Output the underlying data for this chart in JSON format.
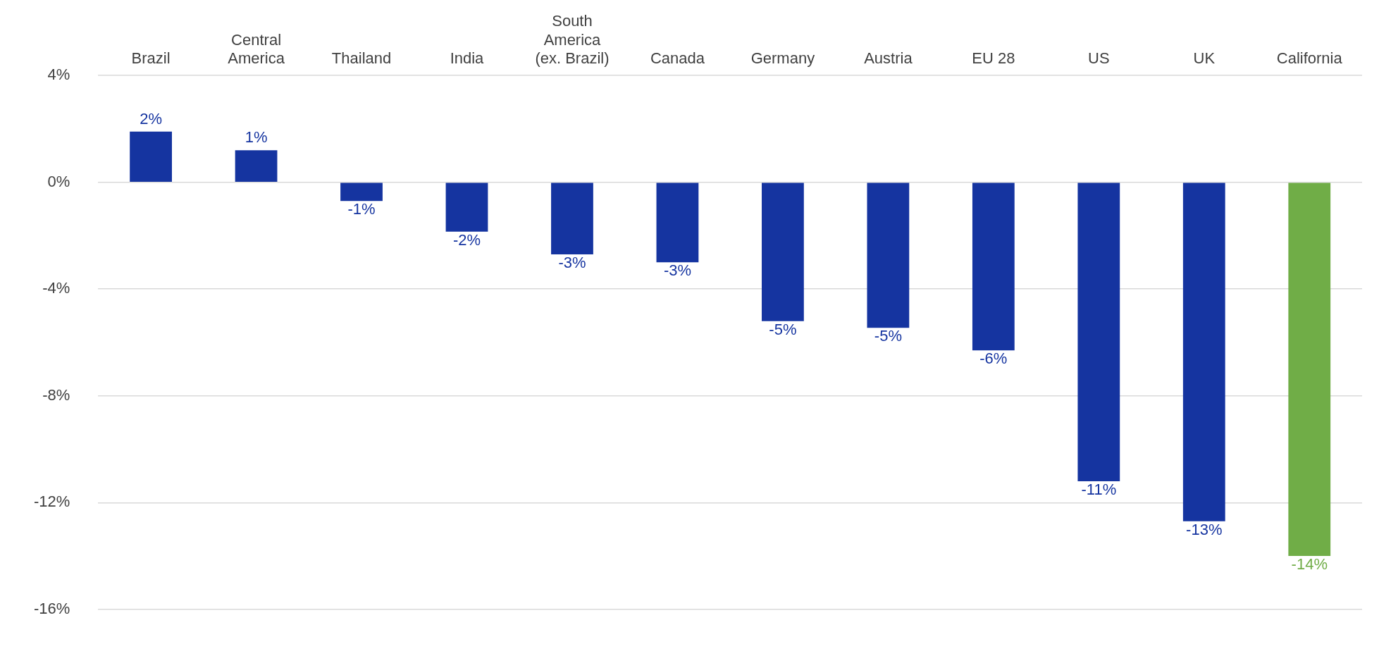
{
  "chart_data": {
    "type": "bar",
    "categories": [
      "Brazil",
      "Central\nAmerica",
      "Thailand",
      "India",
      "South\nAmerica\n(ex. Brazil)",
      "Canada",
      "Germany",
      "Austria",
      "EU 28",
      "US",
      "UK",
      "California"
    ],
    "values": [
      1.9,
      1.2,
      -0.7,
      -1.85,
      -2.7,
      -3.0,
      -5.2,
      -5.45,
      -6.3,
      -11.2,
      -12.7,
      -14.0
    ],
    "value_labels": [
      "2%",
      "1%",
      "-1%",
      "-2%",
      "-3%",
      "-3%",
      "-5%",
      "-5%",
      "-6%",
      "-11%",
      "-13%",
      "-14%"
    ],
    "colors": [
      "#1534a0",
      "#1534a0",
      "#1534a0",
      "#1534a0",
      "#1534a0",
      "#1534a0",
      "#1534a0",
      "#1534a0",
      "#1534a0",
      "#1534a0",
      "#1534a0",
      "#70ad47"
    ],
    "ylim": [
      -16,
      4
    ],
    "yticks": [
      {
        "value": -16,
        "label": "-16%"
      },
      {
        "value": -12,
        "label": "-12%"
      },
      {
        "value": -8,
        "label": "-8%"
      },
      {
        "value": -4,
        "label": "-4%"
      },
      {
        "value": 0,
        "label": "0%"
      },
      {
        "value": 4,
        "label": "4%"
      }
    ],
    "grid": "y",
    "legend": false
  }
}
